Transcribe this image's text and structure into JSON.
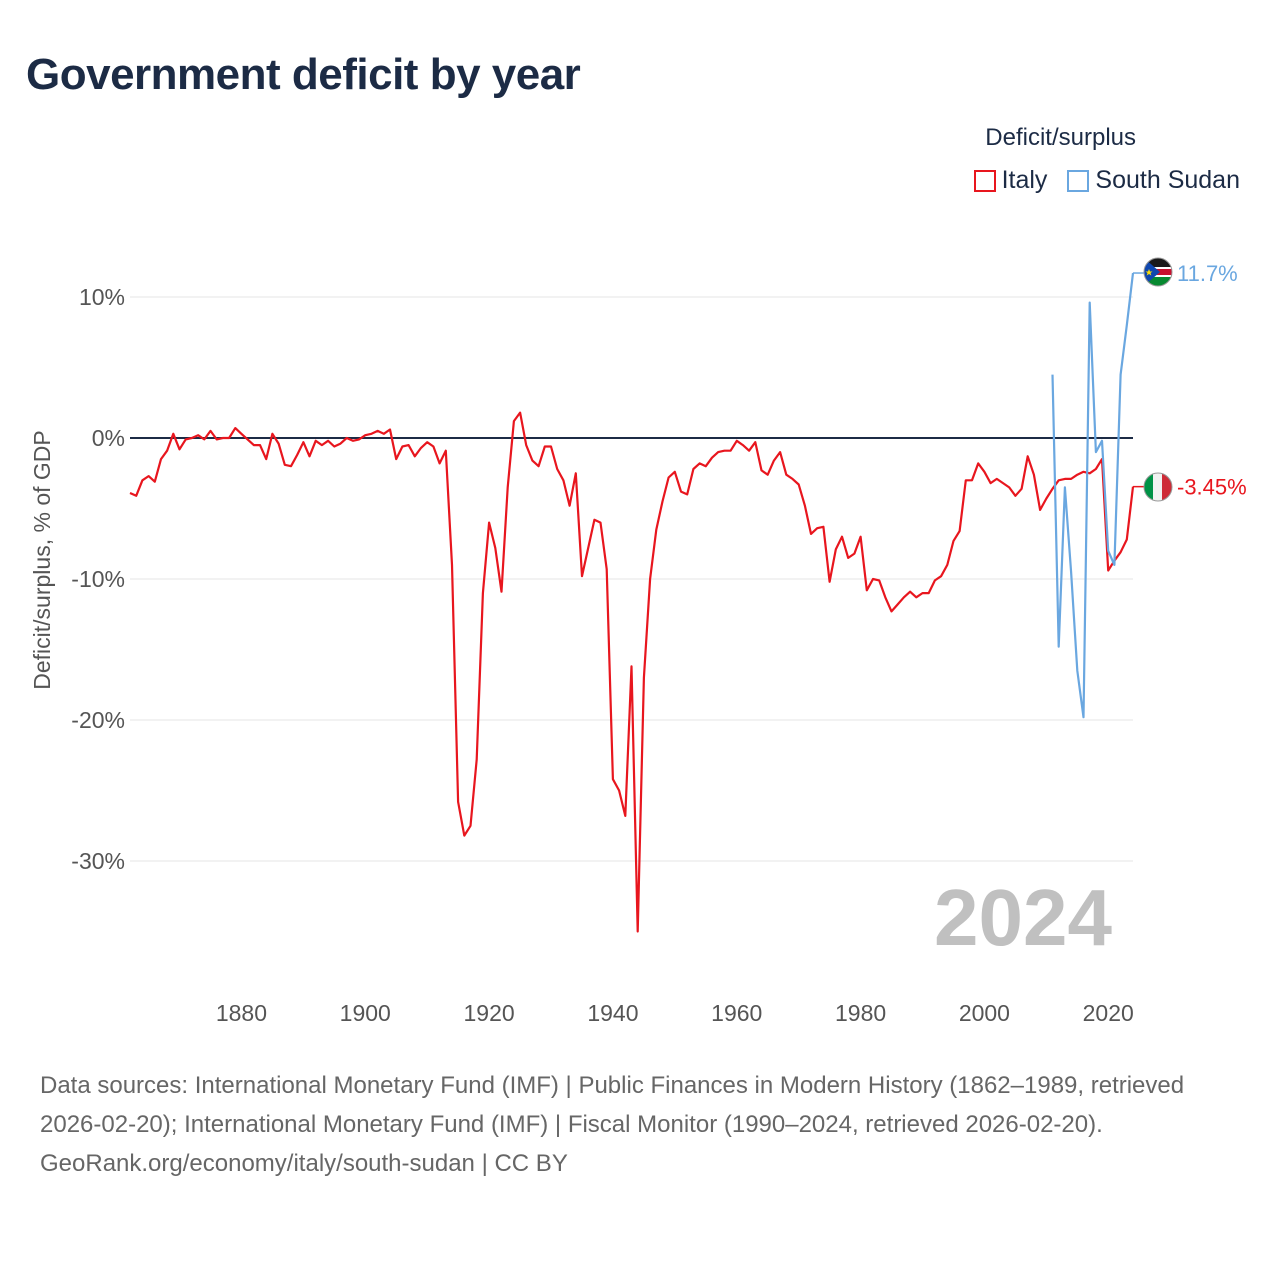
{
  "title": "Government deficit by year",
  "legend": {
    "title": "Deficit/surplus",
    "items": [
      {
        "label": "Italy",
        "color": "#e8161e"
      },
      {
        "label": "South Sudan",
        "color": "#6aa7e0"
      }
    ]
  },
  "current_year": "2024",
  "footer": {
    "sources": "Data sources: International Monetary Fund (IMF) | Public Finances in Modern History (1862–1989, retrieved 2026-02-20); International Monetary Fund (IMF) | Fiscal Monitor (1990–2024, retrieved 2026-02-20).",
    "credit": "GeoRank.org/economy/italy/south-sudan | CC BY"
  },
  "chart_data": {
    "type": "line",
    "title": "Government deficit by year",
    "xlabel": "",
    "ylabel": "Deficit/surplus, % of GDP",
    "xlim": [
      1862,
      2024
    ],
    "ylim": [
      -38,
      12
    ],
    "x_ticks": [
      1880,
      1900,
      1920,
      1940,
      1960,
      1980,
      2000,
      2020
    ],
    "y_ticks": [
      {
        "value": 10,
        "label": "10%"
      },
      {
        "value": 0,
        "label": "0%"
      },
      {
        "value": -10,
        "label": "-10%"
      },
      {
        "value": -20,
        "label": "-20%"
      },
      {
        "value": -30,
        "label": "-30%"
      }
    ],
    "zero_line": true,
    "series": [
      {
        "name": "Italy",
        "color": "#e8161e",
        "end_label": "-3.45%",
        "points": [
          [
            1862,
            -3.9
          ],
          [
            1863,
            -4.1
          ],
          [
            1864,
            -3.0
          ],
          [
            1865,
            -2.7
          ],
          [
            1866,
            -3.1
          ],
          [
            1867,
            -1.5
          ],
          [
            1868,
            -0.9
          ],
          [
            1869,
            0.3
          ],
          [
            1870,
            -0.8
          ],
          [
            1871,
            -0.1
          ],
          [
            1872,
            0.0
          ],
          [
            1873,
            0.2
          ],
          [
            1874,
            -0.1
          ],
          [
            1875,
            0.5
          ],
          [
            1876,
            -0.1
          ],
          [
            1877,
            0.0
          ],
          [
            1878,
            0.0
          ],
          [
            1879,
            0.7
          ],
          [
            1880,
            0.3
          ],
          [
            1881,
            -0.1
          ],
          [
            1882,
            -0.5
          ],
          [
            1883,
            -0.5
          ],
          [
            1884,
            -1.5
          ],
          [
            1885,
            0.3
          ],
          [
            1886,
            -0.4
          ],
          [
            1887,
            -1.9
          ],
          [
            1888,
            -2.0
          ],
          [
            1889,
            -1.2
          ],
          [
            1890,
            -0.3
          ],
          [
            1891,
            -1.3
          ],
          [
            1892,
            -0.2
          ],
          [
            1893,
            -0.5
          ],
          [
            1894,
            -0.2
          ],
          [
            1895,
            -0.6
          ],
          [
            1896,
            -0.4
          ],
          [
            1897,
            0.0
          ],
          [
            1898,
            -0.2
          ],
          [
            1899,
            -0.1
          ],
          [
            1900,
            0.2
          ],
          [
            1901,
            0.3
          ],
          [
            1902,
            0.5
          ],
          [
            1903,
            0.3
          ],
          [
            1904,
            0.6
          ],
          [
            1905,
            -1.5
          ],
          [
            1906,
            -0.6
          ],
          [
            1907,
            -0.5
          ],
          [
            1908,
            -1.3
          ],
          [
            1909,
            -0.7
          ],
          [
            1910,
            -0.3
          ],
          [
            1911,
            -0.6
          ],
          [
            1912,
            -1.8
          ],
          [
            1913,
            -0.9
          ],
          [
            1914,
            -9.0
          ],
          [
            1915,
            -25.8
          ],
          [
            1916,
            -28.2
          ],
          [
            1917,
            -27.5
          ],
          [
            1918,
            -22.8
          ],
          [
            1919,
            -11.0
          ],
          [
            1920,
            -6.0
          ],
          [
            1921,
            -7.8
          ],
          [
            1922,
            -10.9
          ],
          [
            1923,
            -3.5
          ],
          [
            1924,
            1.2
          ],
          [
            1925,
            1.8
          ],
          [
            1926,
            -0.5
          ],
          [
            1927,
            -1.6
          ],
          [
            1928,
            -2.0
          ],
          [
            1929,
            -0.6
          ],
          [
            1930,
            -0.6
          ],
          [
            1931,
            -2.2
          ],
          [
            1932,
            -3.0
          ],
          [
            1933,
            -4.8
          ],
          [
            1934,
            -2.5
          ],
          [
            1935,
            -9.8
          ],
          [
            1936,
            -7.8
          ],
          [
            1937,
            -5.8
          ],
          [
            1938,
            -6.0
          ],
          [
            1939,
            -9.3
          ],
          [
            1940,
            -24.2
          ],
          [
            1941,
            -25.0
          ],
          [
            1942,
            -26.8
          ],
          [
            1943,
            -16.2
          ],
          [
            1944,
            -35.0
          ],
          [
            1945,
            -17.0
          ],
          [
            1946,
            -10.0
          ],
          [
            1947,
            -6.5
          ],
          [
            1948,
            -4.5
          ],
          [
            1949,
            -2.8
          ],
          [
            1950,
            -2.4
          ],
          [
            1951,
            -3.8
          ],
          [
            1952,
            -4.0
          ],
          [
            1953,
            -2.2
          ],
          [
            1954,
            -1.8
          ],
          [
            1955,
            -2.0
          ],
          [
            1956,
            -1.4
          ],
          [
            1957,
            -1.0
          ],
          [
            1958,
            -0.9
          ],
          [
            1959,
            -0.9
          ],
          [
            1960,
            -0.2
          ],
          [
            1961,
            -0.5
          ],
          [
            1962,
            -0.9
          ],
          [
            1963,
            -0.3
          ],
          [
            1964,
            -2.3
          ],
          [
            1965,
            -2.6
          ],
          [
            1966,
            -1.6
          ],
          [
            1967,
            -1.0
          ],
          [
            1968,
            -2.6
          ],
          [
            1969,
            -2.9
          ],
          [
            1970,
            -3.3
          ],
          [
            1971,
            -4.8
          ],
          [
            1972,
            -6.8
          ],
          [
            1973,
            -6.4
          ],
          [
            1974,
            -6.3
          ],
          [
            1975,
            -10.2
          ],
          [
            1976,
            -7.9
          ],
          [
            1977,
            -7.0
          ],
          [
            1978,
            -8.5
          ],
          [
            1979,
            -8.2
          ],
          [
            1980,
            -7.0
          ],
          [
            1981,
            -10.8
          ],
          [
            1982,
            -10.0
          ],
          [
            1983,
            -10.1
          ],
          [
            1984,
            -11.3
          ],
          [
            1985,
            -12.3
          ],
          [
            1986,
            -11.8
          ],
          [
            1987,
            -11.3
          ],
          [
            1988,
            -10.9
          ],
          [
            1989,
            -11.3
          ],
          [
            1990,
            -11.0
          ],
          [
            1991,
            -11.0
          ],
          [
            1992,
            -10.1
          ],
          [
            1993,
            -9.8
          ],
          [
            1994,
            -9.0
          ],
          [
            1995,
            -7.3
          ],
          [
            1996,
            -6.6
          ],
          [
            1997,
            -3.0
          ],
          [
            1998,
            -3.0
          ],
          [
            1999,
            -1.8
          ],
          [
            2000,
            -2.4
          ],
          [
            2001,
            -3.2
          ],
          [
            2002,
            -2.9
          ],
          [
            2003,
            -3.2
          ],
          [
            2004,
            -3.5
          ],
          [
            2005,
            -4.1
          ],
          [
            2006,
            -3.6
          ],
          [
            2007,
            -1.3
          ],
          [
            2008,
            -2.6
          ],
          [
            2009,
            -5.1
          ],
          [
            2010,
            -4.3
          ],
          [
            2011,
            -3.6
          ],
          [
            2012,
            -3.0
          ],
          [
            2013,
            -2.9
          ],
          [
            2014,
            -2.9
          ],
          [
            2015,
            -2.6
          ],
          [
            2016,
            -2.4
          ],
          [
            2017,
            -2.5
          ],
          [
            2018,
            -2.2
          ],
          [
            2019,
            -1.5
          ],
          [
            2020,
            -9.4
          ],
          [
            2021,
            -8.7
          ],
          [
            2022,
            -8.1
          ],
          [
            2023,
            -7.2
          ],
          [
            2024,
            -3.45
          ]
        ]
      },
      {
        "name": "South Sudan",
        "color": "#6aa7e0",
        "end_label": "11.7%",
        "points": [
          [
            2011,
            4.5
          ],
          [
            2012,
            -14.8
          ],
          [
            2013,
            -3.5
          ],
          [
            2014,
            -9.5
          ],
          [
            2015,
            -16.5
          ],
          [
            2016,
            -19.8
          ],
          [
            2017,
            9.6
          ],
          [
            2018,
            -1.0
          ],
          [
            2019,
            -0.2
          ],
          [
            2020,
            -8.0
          ],
          [
            2021,
            -9.0
          ],
          [
            2022,
            4.5
          ],
          [
            2023,
            8.0
          ],
          [
            2024,
            11.7
          ]
        ]
      }
    ]
  }
}
